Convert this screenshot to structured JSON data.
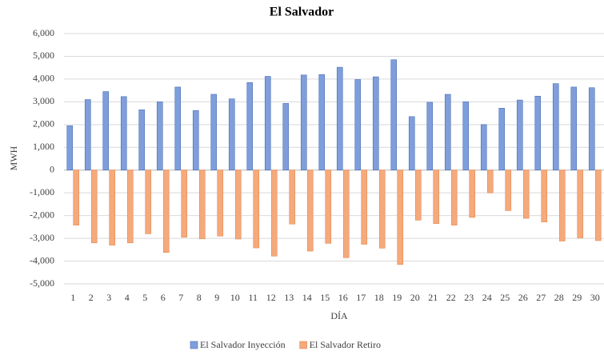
{
  "chart_data": {
    "type": "bar",
    "title": "El Salvador",
    "x_label": "DÍA",
    "y_label": "MWH",
    "categories": [
      "1",
      "2",
      "3",
      "4",
      "5",
      "6",
      "7",
      "8",
      "9",
      "10",
      "11",
      "12",
      "13",
      "14",
      "15",
      "16",
      "17",
      "18",
      "19",
      "20",
      "21",
      "22",
      "23",
      "24",
      "25",
      "26",
      "27",
      "28",
      "29",
      "30"
    ],
    "series": [
      {
        "name": "El Salvador Inyección",
        "color": "#7f9edb",
        "values": [
          1950,
          3100,
          3450,
          3230,
          2650,
          3000,
          3650,
          2620,
          3330,
          3130,
          3850,
          4120,
          2930,
          4180,
          4200,
          4520,
          3980,
          4100,
          4850,
          2350,
          2980,
          3330,
          3000,
          2000,
          2720,
          3080,
          3250,
          3800,
          3650,
          3620
        ]
      },
      {
        "name": "El Salvador Retiro",
        "color": "#f4aa7c",
        "values": [
          -2420,
          -3200,
          -3300,
          -3200,
          -2800,
          -3620,
          -2950,
          -3020,
          -2900,
          -3030,
          -3420,
          -3780,
          -2370,
          -3560,
          -3220,
          -3850,
          -3260,
          -3430,
          -4150,
          -2200,
          -2350,
          -2420,
          -2080,
          -1000,
          -1780,
          -2120,
          -2280,
          -3120,
          -2980,
          -3100
        ]
      }
    ],
    "ylim": [
      -5000,
      6000
    ],
    "yticks": [
      {
        "value": -5000,
        "label": "-5,000"
      },
      {
        "value": -4000,
        "label": "-4,000"
      },
      {
        "value": -3000,
        "label": "-3,000"
      },
      {
        "value": -2000,
        "label": "-2,000"
      },
      {
        "value": -1000,
        "label": "-1,000"
      },
      0,
      {
        "value": 1000,
        "label": "1,000"
      },
      {
        "value": 2000,
        "label": "2,000"
      },
      {
        "value": 3000,
        "label": "3,000"
      },
      {
        "value": 4000,
        "label": "4,000"
      },
      {
        "value": 5000,
        "label": "5,000"
      },
      {
        "value": 6000,
        "label": "6,000"
      }
    ],
    "grid": true,
    "legend": "bottom"
  }
}
